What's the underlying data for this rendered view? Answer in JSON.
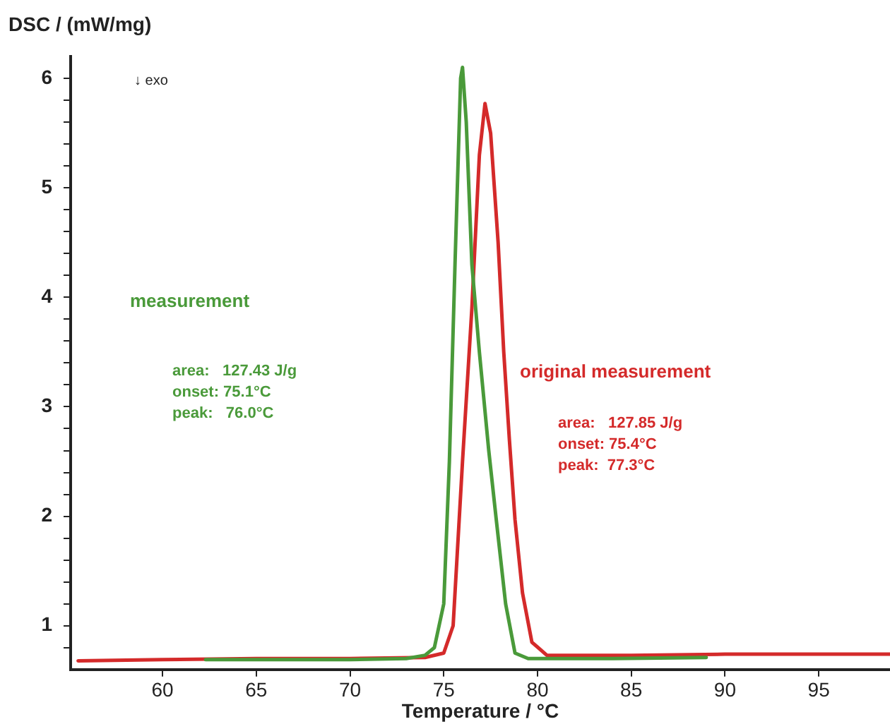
{
  "chart_data": {
    "type": "line",
    "xlabel": "Temperature / °C",
    "ylabel": "DSC / (mW/mg)",
    "xlim": [
      55.1,
      98.8
    ],
    "xticks": [
      60,
      65,
      70,
      75,
      80,
      85,
      90,
      95
    ],
    "ylim": [
      0.6,
      6.2
    ],
    "yticks": [
      {
        "value": 0.8,
        "label": null
      },
      1,
      {
        "value": 1.2,
        "label": null
      },
      {
        "value": 1.4,
        "label": null
      },
      {
        "value": 1.6,
        "label": null
      },
      {
        "value": 1.8,
        "label": null
      },
      2,
      {
        "value": 2.2,
        "label": null
      },
      {
        "value": 2.4,
        "label": null
      },
      {
        "value": 2.6,
        "label": null
      },
      {
        "value": 2.8,
        "label": null
      },
      3,
      {
        "value": 3.2,
        "label": null
      },
      {
        "value": 3.4,
        "label": null
      },
      {
        "value": 3.6,
        "label": null
      },
      {
        "value": 3.8,
        "label": null
      },
      4,
      {
        "value": 4.2,
        "label": null
      },
      {
        "value": 4.4,
        "label": null
      },
      {
        "value": 4.6,
        "label": null
      },
      {
        "value": 4.8,
        "label": null
      },
      5,
      {
        "value": 5.2,
        "label": null
      },
      {
        "value": 5.4,
        "label": null
      },
      {
        "value": 5.6,
        "label": null
      },
      {
        "value": 5.8,
        "label": null
      },
      6
    ],
    "grid": false,
    "legend": false,
    "marker": "none",
    "line_style": "solid",
    "series": [
      {
        "name": "measurement",
        "color": "#4a9a3a",
        "x": [
          62.3,
          70,
          73,
          74,
          74.5,
          75,
          75.3,
          75.6,
          75.9,
          76.0,
          76.2,
          76.5,
          76.9,
          77.4,
          77.8,
          78.3,
          78.8,
          79.5,
          84,
          89
        ],
        "values": [
          0.69,
          0.69,
          0.7,
          0.73,
          0.8,
          1.2,
          2.5,
          4.3,
          6.0,
          6.1,
          5.6,
          4.3,
          3.5,
          2.6,
          1.97,
          1.2,
          0.75,
          0.7,
          0.7,
          0.71
        ]
      },
      {
        "name": "original measurement",
        "color": "#d42a2a",
        "x": [
          55.5,
          60,
          65,
          70,
          74,
          75,
          75.5,
          76,
          76.5,
          76.9,
          77.2,
          77.5,
          77.9,
          78.2,
          78.5,
          78.8,
          79.2,
          79.7,
          80.5,
          85,
          90,
          98.8
        ],
        "values": [
          0.68,
          0.69,
          0.7,
          0.7,
          0.71,
          0.75,
          1.0,
          2.5,
          3.9,
          5.3,
          5.77,
          5.5,
          4.5,
          3.5,
          2.7,
          1.97,
          1.3,
          0.85,
          0.73,
          0.73,
          0.74,
          0.74
        ]
      }
    ],
    "annotations": [
      "↓ exo",
      "area:   127.43 J/g",
      "onset: 75.1°C",
      "peak:   76.0°C",
      "area:   127.85 J/g",
      "onset: 75.4°C",
      "peak:  77.3°C"
    ]
  }
}
